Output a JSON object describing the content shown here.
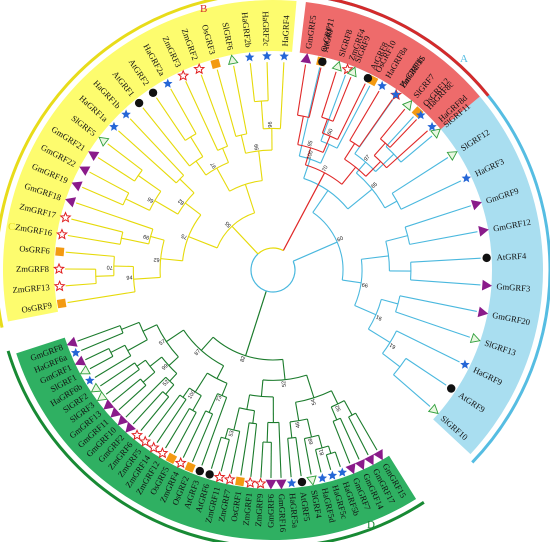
{
  "palette": {
    "A": {
      "bg": "#a9def0",
      "line": "#4ab8de",
      "arc": "#56bde2"
    },
    "B": {
      "bg": "#ee6b6b",
      "line": "#e02828",
      "arc": "#d42a2a"
    },
    "C": {
      "bg": "#fdfc6e",
      "line": "#e6da0a",
      "arc": "#e8dc1a"
    },
    "D": {
      "bg": "#2fb062",
      "line": "#1b7b2c",
      "arc": "#188a34"
    }
  },
  "species_markers": {
    "Gm": {
      "shape": "triangle",
      "color": "#8a1b8a"
    },
    "Ha": {
      "shape": "star",
      "color": "#2566d6"
    },
    "Zm": {
      "shape": "star-outline",
      "color": "#e02020"
    },
    "Os": {
      "shape": "square",
      "color": "#f39a12"
    },
    "At": {
      "shape": "circle",
      "color": "#111111"
    },
    "Sl": {
      "shape": "triangle-outline",
      "color": "#2e9e3a"
    }
  },
  "clades": [
    {
      "id": "A",
      "label": "A",
      "leaves": [
        "OsGRF11",
        "ZmGRF4",
        "OsGRF10",
        "ZmGRF15",
        "OsGRF12",
        "SlGRF11",
        "SlGRF12",
        "HaGRF3",
        "GmGRF9",
        "GmGRF12",
        "AtGRF4",
        "GmGRF3",
        "GmGRF20",
        "SlGRF13",
        "HaGRF9",
        "AtGRF9",
        "SlGRF10"
      ]
    },
    {
      "id": "D",
      "label": "D",
      "leaves": [
        "GmGRF15",
        "GmGRF17",
        "GmGRF14",
        "GmGRF7",
        "HaGRF5b",
        "HaGRF5c",
        "HaGRF5d",
        "SlGRF4",
        "AtGRF5",
        "HaGRF5a",
        "GmGRF16",
        "GmGRF6",
        "ZmGRF9",
        "ZmGRF1",
        "OsGRF1",
        "ZmGRF7",
        "ZmGRF11",
        "AtGRF6",
        "AtGRF3",
        "OsGRF2",
        "ZmGRF4",
        "OsGRF5",
        "ZmGRF12",
        "ZmGRF14",
        "ZmGRF5",
        "ZmGRF6",
        "GmGRF2",
        "GmGRF10",
        "GmGRF11",
        "GmGRF13",
        "SlGRF3",
        "SlGRF2",
        "HaGRF6b",
        "SlGRF1",
        "GmGRF1",
        "HaGRF6a",
        "GmGRF8"
      ]
    },
    {
      "id": "C",
      "label": "C",
      "leaves": [
        "OsGRF9",
        "ZmGRF13",
        "ZmGRF8",
        "OsGRF6",
        "ZmGRF16",
        "ZmGRF17",
        "GmGRF18",
        "GmGRF19",
        "GmGRF22",
        "GmGRF21",
        "SlGRF5",
        "HaGRF1a",
        "HaGRF1b",
        "AtGRF1",
        "AtGRF2",
        "HaGRF2a",
        "ZmGRF3",
        "ZmGRF2",
        "OsGRF3",
        "SlGRF6",
        "HaGRF2b",
        "HaGRF2c",
        "HaGRF4"
      ]
    },
    {
      "id": "B",
      "label": "B",
      "leaves": [
        "GmGRF5",
        "AtGRF7",
        "SlGRF8",
        "SlGRF9",
        "AtGRF8",
        "HaGRF8a",
        "HaGRF8b",
        "SlGRF7",
        "HaGRF8c",
        "HaGRF8d"
      ]
    }
  ],
  "bootstrap_labels": [
    "100",
    "97",
    "65",
    "61",
    "91",
    "99",
    "60",
    "92",
    "81",
    "69",
    "46",
    "54",
    "53",
    "52",
    "73",
    "100",
    "52",
    "99",
    "57",
    "87",
    "82",
    "70",
    "94",
    "99",
    "62",
    "66",
    "82",
    "75",
    "97",
    "96",
    "99",
    "55",
    "60",
    "95",
    "70",
    "100",
    "80",
    "90",
    "56",
    "68",
    "88",
    "93",
    "65"
  ]
}
